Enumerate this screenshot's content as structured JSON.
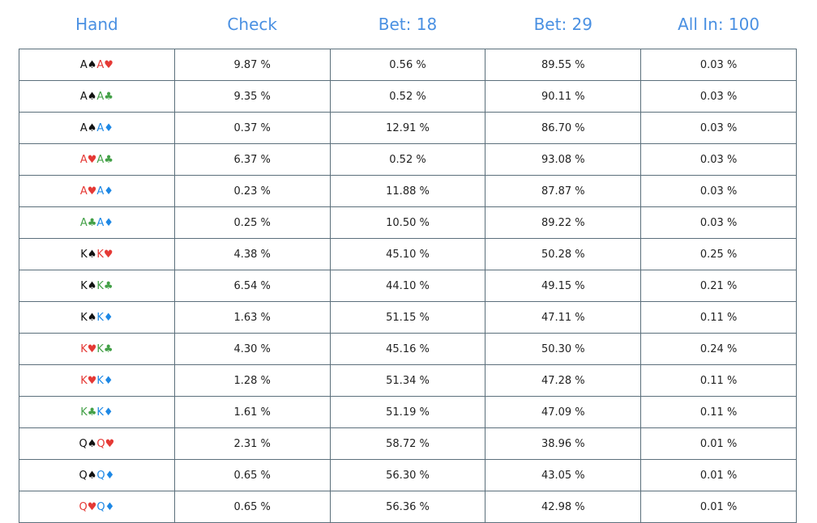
{
  "table": {
    "suit_colors": {
      "♠": "#111111",
      "♥": "#e53935",
      "♣": "#43a047",
      "♦": "#1e88e5"
    },
    "header": [
      "Hand",
      "Check",
      "Bet: 18",
      "Bet: 29",
      "All In: 100"
    ],
    "rows": [
      [
        [
          "A♠",
          "A♥"
        ],
        "9.87 %",
        "0.56 %",
        "89.55 %",
        "0.03 %"
      ],
      [
        [
          "A♠",
          "A♣"
        ],
        "9.35 %",
        "0.52 %",
        "90.11 %",
        "0.03 %"
      ],
      [
        [
          "A♠",
          "A♦"
        ],
        "0.37 %",
        "12.91 %",
        "86.70 %",
        "0.03 %"
      ],
      [
        [
          "A♥",
          "A♣"
        ],
        "6.37 %",
        "0.52 %",
        "93.08 %",
        "0.03 %"
      ],
      [
        [
          "A♥",
          "A♦"
        ],
        "0.23 %",
        "11.88 %",
        "87.87 %",
        "0.03 %"
      ],
      [
        [
          "A♣",
          "A♦"
        ],
        "0.25 %",
        "10.50 %",
        "89.22 %",
        "0.03 %"
      ],
      [
        [
          "K♠",
          "K♥"
        ],
        "4.38 %",
        "45.10 %",
        "50.28 %",
        "0.25 %"
      ],
      [
        [
          "K♠",
          "K♣"
        ],
        "6.54 %",
        "44.10 %",
        "49.15 %",
        "0.21 %"
      ],
      [
        [
          "K♠",
          "K♦"
        ],
        "1.63 %",
        "51.15 %",
        "47.11 %",
        "0.11 %"
      ],
      [
        [
          "K♥",
          "K♣"
        ],
        "4.30 %",
        "45.16 %",
        "50.30 %",
        "0.24 %"
      ],
      [
        [
          "K♥",
          "K♦"
        ],
        "1.28 %",
        "51.34 %",
        "47.28 %",
        "0.11 %"
      ],
      [
        [
          "K♣",
          "K♦"
        ],
        "1.61 %",
        "51.19 %",
        "47.09 %",
        "0.11 %"
      ],
      [
        [
          "Q♠",
          "Q♥"
        ],
        "2.31 %",
        "58.72 %",
        "38.96 %",
        "0.01 %"
      ],
      [
        [
          "Q♠",
          "Q♦"
        ],
        "0.65 %",
        "56.30 %",
        "43.05 %",
        "0.01 %"
      ],
      [
        [
          "Q♥",
          "Q♦"
        ],
        "0.65 %",
        "56.36 %",
        "42.98 %",
        "0.01 %"
      ]
    ]
  }
}
